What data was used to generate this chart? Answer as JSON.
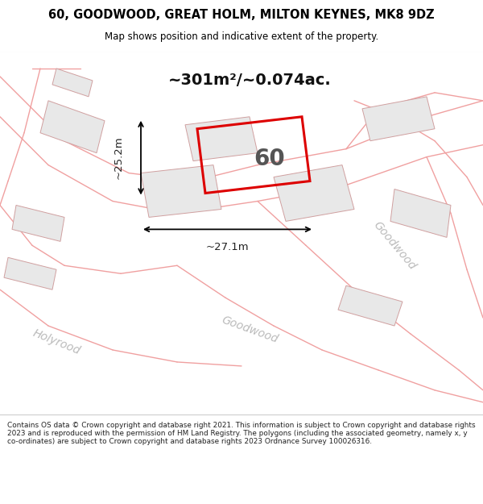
{
  "title_line1": "60, GOODWOOD, GREAT HOLM, MILTON KEYNES, MK8 9DZ",
  "title_line2": "Map shows position and indicative extent of the property.",
  "area_label": "~301m²/~0.074ac.",
  "width_label": "~27.1m",
  "height_label": "~25.2m",
  "plot_number": "60",
  "disclaimer": "Contains OS data © Crown copyright and database right 2021. This information is subject to Crown copyright and database rights 2023 and is reproduced with the permission of HM Land Registry. The polygons (including the associated geometry, namely x, y co-ordinates) are subject to Crown copyright and database rights 2023 Ordnance Survey 100026316.",
  "road_color": "#f0a0a0",
  "building_color": "#e8e8e8",
  "building_edge": "#d0a0a0",
  "plot_color": "#dd0000",
  "map_bg": "#ffffff",
  "text_color_dim": "#222222",
  "text_color_street": "#bbbbbb"
}
